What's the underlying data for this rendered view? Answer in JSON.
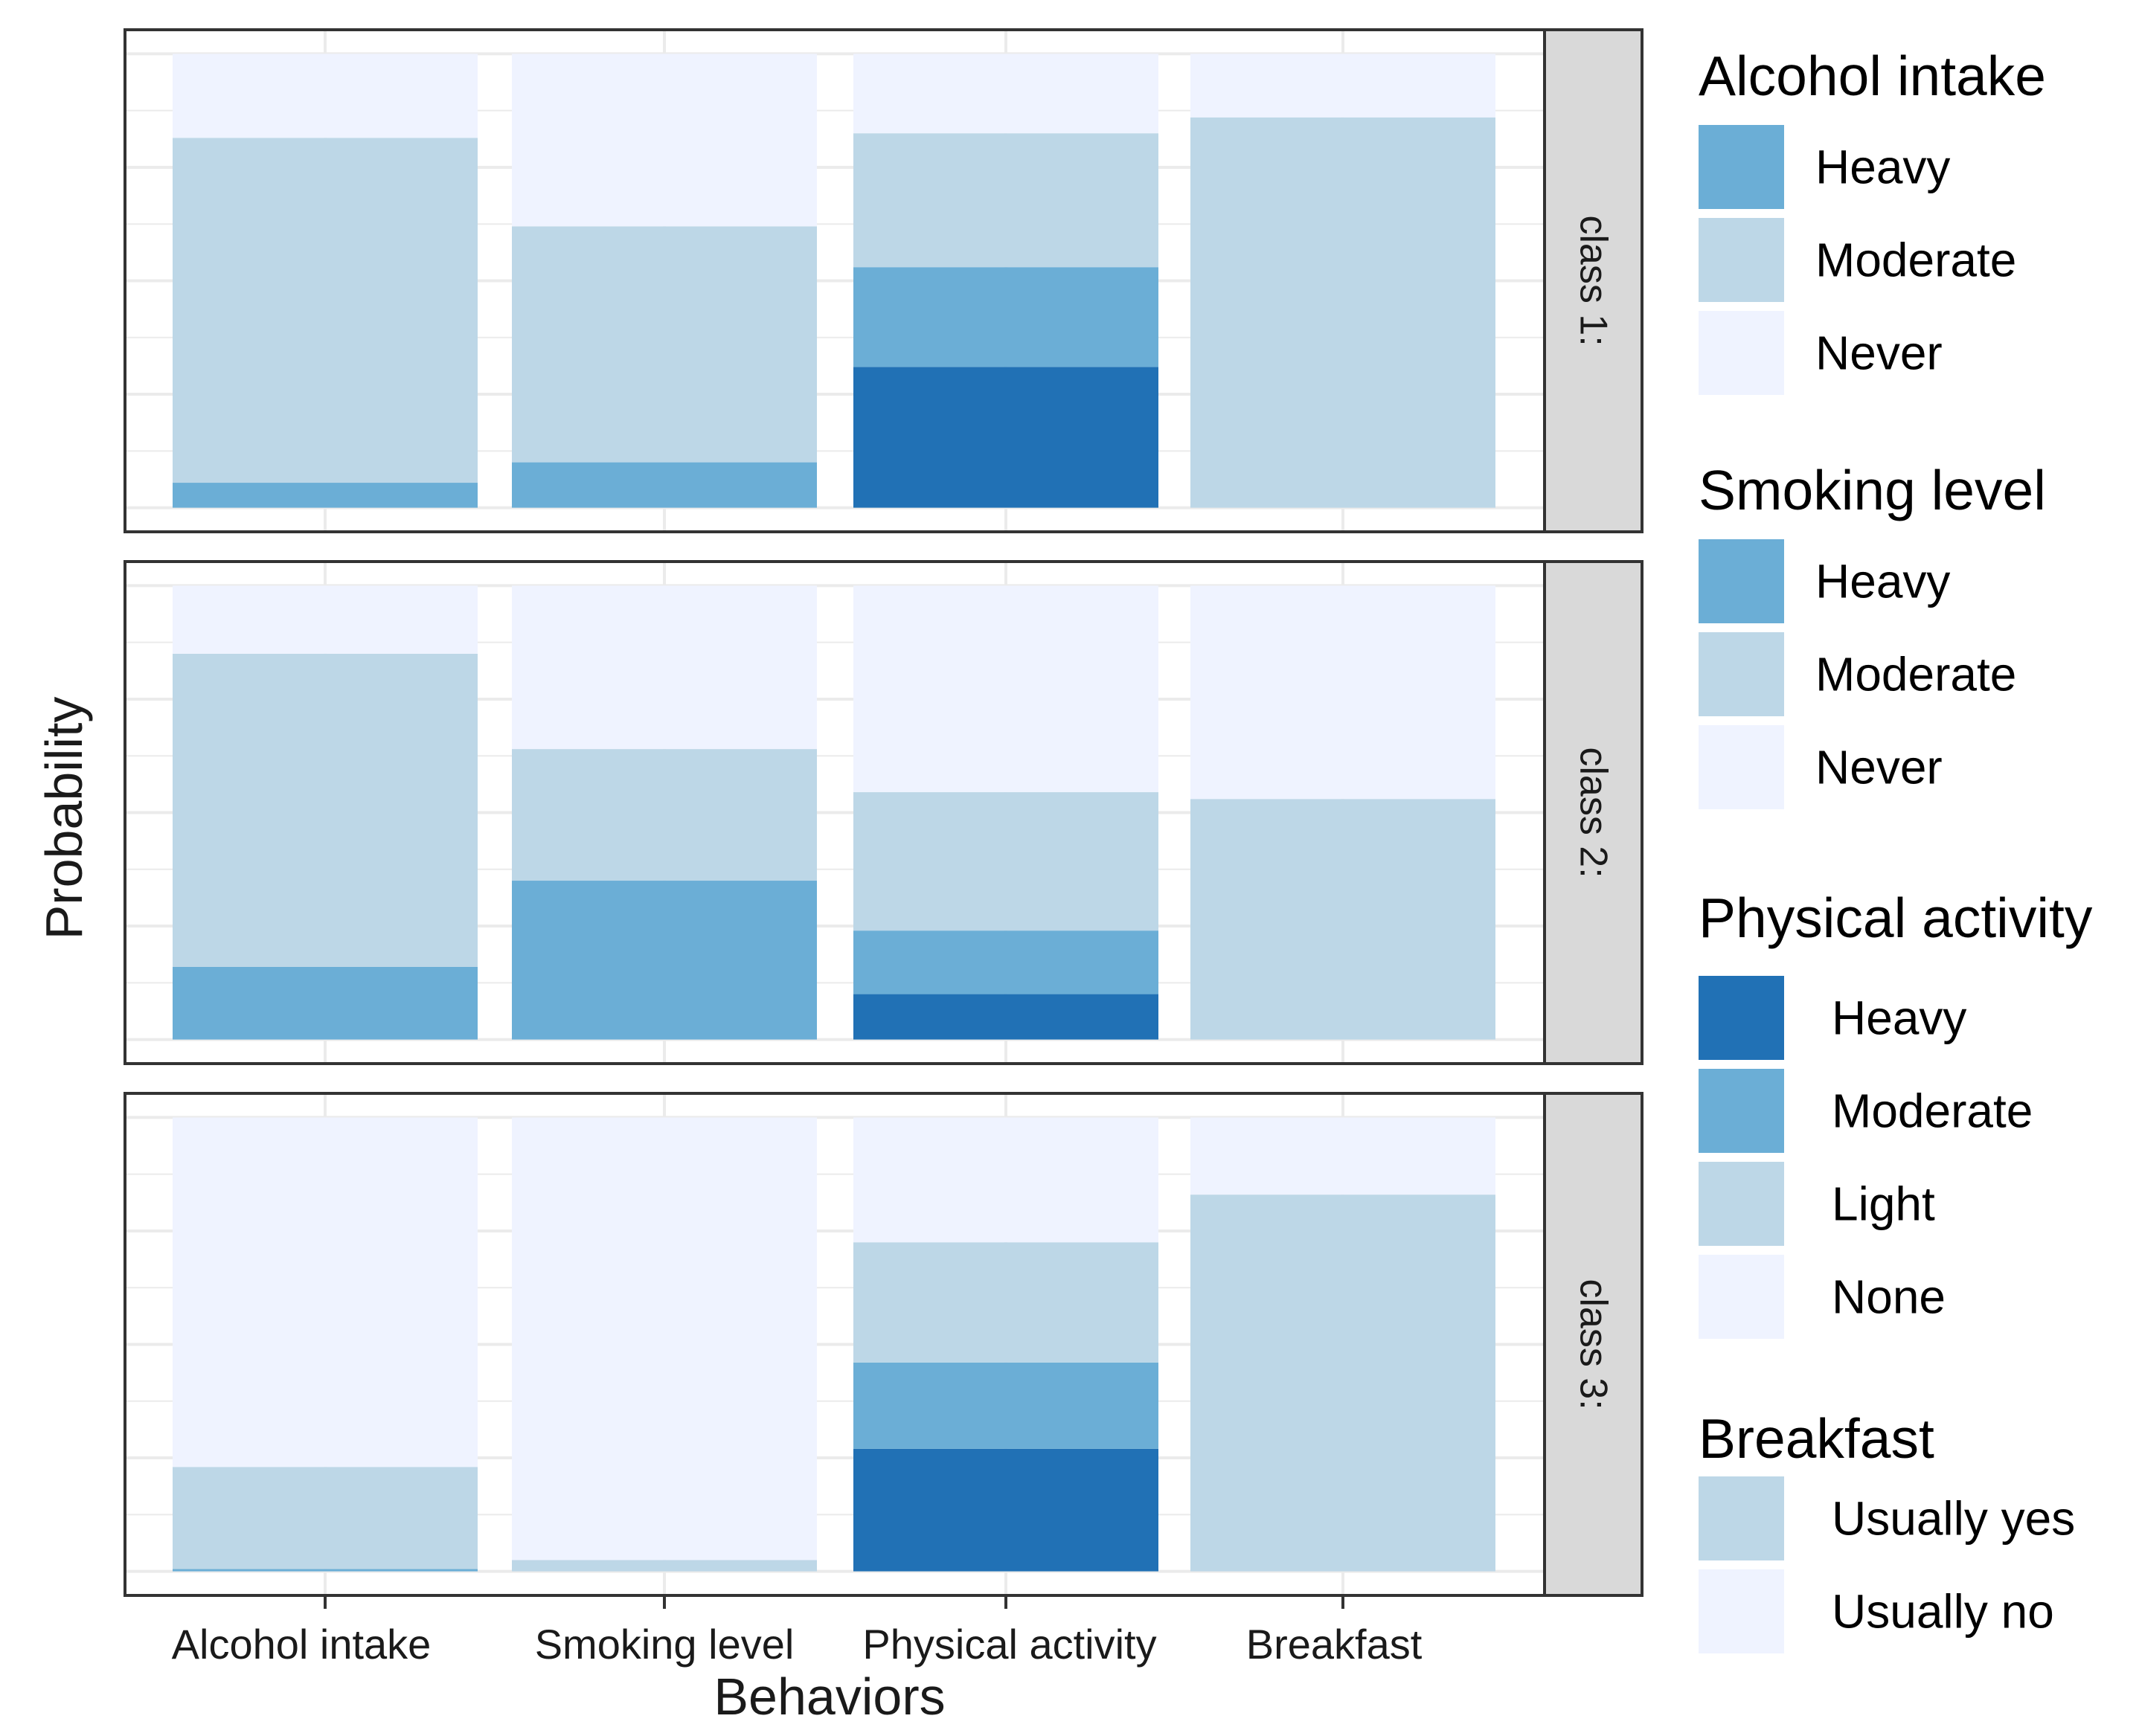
{
  "chart_data": {
    "type": "bar",
    "stacked": true,
    "normalized": true,
    "xlabel": "Behaviors",
    "ylabel": "Probability",
    "ylim": [
      0,
      1
    ],
    "grid": true,
    "legend_position": "right",
    "categories": [
      "Alcohol intake",
      "Smoking level",
      "Physical activity",
      "Breakfast"
    ],
    "facets": [
      {
        "label": "class 1:",
        "stacks": [
          [
            {
              "level": "Heavy",
              "value": 0.055
            },
            {
              "level": "Moderate",
              "value": 0.76
            },
            {
              "level": "Never",
              "value": 0.185
            }
          ],
          [
            {
              "level": "Heavy",
              "value": 0.1
            },
            {
              "level": "Moderate",
              "value": 0.52
            },
            {
              "level": "Never",
              "value": 0.38
            }
          ],
          [
            {
              "level": "Heavy",
              "value": 0.31
            },
            {
              "level": "Moderate",
              "value": 0.22
            },
            {
              "level": "Light",
              "value": 0.295
            },
            {
              "level": "None",
              "value": 0.175
            }
          ],
          [
            {
              "level": "Usually yes",
              "value": 0.86
            },
            {
              "level": "Usually no",
              "value": 0.14
            }
          ]
        ]
      },
      {
        "label": "class 2:",
        "stacks": [
          [
            {
              "level": "Heavy",
              "value": 0.16
            },
            {
              "level": "Moderate",
              "value": 0.69
            },
            {
              "level": "Never",
              "value": 0.15
            }
          ],
          [
            {
              "level": "Heavy",
              "value": 0.35
            },
            {
              "level": "Moderate",
              "value": 0.29
            },
            {
              "level": "Never",
              "value": 0.36
            }
          ],
          [
            {
              "level": "Heavy",
              "value": 0.1
            },
            {
              "level": "Moderate",
              "value": 0.14
            },
            {
              "level": "Light",
              "value": 0.305
            },
            {
              "level": "None",
              "value": 0.455
            }
          ],
          [
            {
              "level": "Usually yes",
              "value": 0.53
            },
            {
              "level": "Usually no",
              "value": 0.47
            }
          ]
        ]
      },
      {
        "label": "class 3:",
        "stacks": [
          [
            {
              "level": "Heavy",
              "value": 0.005
            },
            {
              "level": "Moderate",
              "value": 0.225
            },
            {
              "level": "Never",
              "value": 0.77
            }
          ],
          [
            {
              "level": "Heavy",
              "value": 0.0
            },
            {
              "level": "Moderate",
              "value": 0.025
            },
            {
              "level": "Never",
              "value": 0.975
            }
          ],
          [
            {
              "level": "Heavy",
              "value": 0.27
            },
            {
              "level": "Moderate",
              "value": 0.19
            },
            {
              "level": "Light",
              "value": 0.265
            },
            {
              "level": "None",
              "value": 0.275
            }
          ],
          [
            {
              "level": "Usually yes",
              "value": 0.83
            },
            {
              "level": "Usually no",
              "value": 0.17
            }
          ]
        ]
      }
    ],
    "colors": {
      "dark": "#2171b5",
      "medium": "#6baed6",
      "light": "#bdd7e7",
      "pale": "#eff3ff"
    },
    "legends": [
      {
        "title": "Alcohol intake",
        "items": [
          {
            "label": "Heavy",
            "color": "#6baed6"
          },
          {
            "label": "Moderate",
            "color": "#bdd7e7"
          },
          {
            "label": "Never",
            "color": "#eff3ff"
          }
        ]
      },
      {
        "title": "Smoking level",
        "items": [
          {
            "label": "Heavy",
            "color": "#6baed6"
          },
          {
            "label": "Moderate",
            "color": "#bdd7e7"
          },
          {
            "label": "Never",
            "color": "#eff3ff"
          }
        ]
      },
      {
        "title": "Physical activity",
        "items": [
          {
            "label": "Heavy",
            "color": "#2171b5"
          },
          {
            "label": "Moderate",
            "color": "#6baed6"
          },
          {
            "label": "Light",
            "color": "#bdd7e7"
          },
          {
            "label": "None",
            "color": "#eff3ff"
          }
        ]
      },
      {
        "title": "Breakfast",
        "items": [
          {
            "label": "Usually yes",
            "color": "#bdd7e7"
          },
          {
            "label": "Usually no",
            "color": "#eff3ff"
          }
        ]
      }
    ]
  }
}
